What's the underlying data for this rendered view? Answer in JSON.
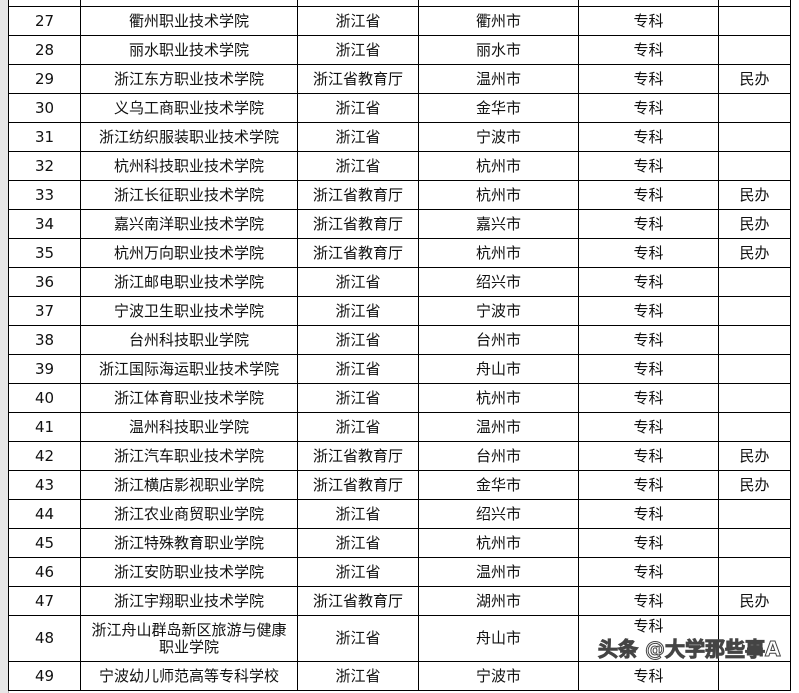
{
  "rows": [
    {
      "no": "",
      "name": "",
      "dept": "",
      "city": "",
      "level": "",
      "note": ""
    },
    {
      "no": "27",
      "name": "衢州职业技术学院",
      "dept": "浙江省",
      "city": "衢州市",
      "level": "专科",
      "note": ""
    },
    {
      "no": "28",
      "name": "丽水职业技术学院",
      "dept": "浙江省",
      "city": "丽水市",
      "level": "专科",
      "note": ""
    },
    {
      "no": "29",
      "name": "浙江东方职业技术学院",
      "dept": "浙江省教育厅",
      "city": "温州市",
      "level": "专科",
      "note": "民办"
    },
    {
      "no": "30",
      "name": "义乌工商职业技术学院",
      "dept": "浙江省",
      "city": "金华市",
      "level": "专科",
      "note": ""
    },
    {
      "no": "31",
      "name": "浙江纺织服装职业技术学院",
      "dept": "浙江省",
      "city": "宁波市",
      "level": "专科",
      "note": ""
    },
    {
      "no": "32",
      "name": "杭州科技职业技术学院",
      "dept": "浙江省",
      "city": "杭州市",
      "level": "专科",
      "note": ""
    },
    {
      "no": "33",
      "name": "浙江长征职业技术学院",
      "dept": "浙江省教育厅",
      "city": "杭州市",
      "level": "专科",
      "note": "民办"
    },
    {
      "no": "34",
      "name": "嘉兴南洋职业技术学院",
      "dept": "浙江省教育厅",
      "city": "嘉兴市",
      "level": "专科",
      "note": "民办"
    },
    {
      "no": "35",
      "name": "杭州万向职业技术学院",
      "dept": "浙江省教育厅",
      "city": "杭州市",
      "level": "专科",
      "note": "民办"
    },
    {
      "no": "36",
      "name": "浙江邮电职业技术学院",
      "dept": "浙江省",
      "city": "绍兴市",
      "level": "专科",
      "note": ""
    },
    {
      "no": "37",
      "name": "宁波卫生职业技术学院",
      "dept": "浙江省",
      "city": "宁波市",
      "level": "专科",
      "note": ""
    },
    {
      "no": "38",
      "name": "台州科技职业学院",
      "dept": "浙江省",
      "city": "台州市",
      "level": "专科",
      "note": ""
    },
    {
      "no": "39",
      "name": "浙江国际海运职业技术学院",
      "dept": "浙江省",
      "city": "舟山市",
      "level": "专科",
      "note": ""
    },
    {
      "no": "40",
      "name": "浙江体育职业技术学院",
      "dept": "浙江省",
      "city": "杭州市",
      "level": "专科",
      "note": ""
    },
    {
      "no": "41",
      "name": "温州科技职业学院",
      "dept": "浙江省",
      "city": "温州市",
      "level": "专科",
      "note": ""
    },
    {
      "no": "42",
      "name": "浙江汽车职业技术学院",
      "dept": "浙江省教育厅",
      "city": "台州市",
      "level": "专科",
      "note": "民办"
    },
    {
      "no": "43",
      "name": "浙江横店影视职业学院",
      "dept": "浙江省教育厅",
      "city": "金华市",
      "level": "专科",
      "note": "民办"
    },
    {
      "no": "44",
      "name": "浙江农业商贸职业学院",
      "dept": "浙江省",
      "city": "绍兴市",
      "level": "专科",
      "note": ""
    },
    {
      "no": "45",
      "name": "浙江特殊教育职业学院",
      "dept": "浙江省",
      "city": "杭州市",
      "level": "专科",
      "note": ""
    },
    {
      "no": "46",
      "name": "浙江安防职业技术学院",
      "dept": "浙江省",
      "city": "温州市",
      "level": "专科",
      "note": ""
    },
    {
      "no": "47",
      "name": "浙江宇翔职业技术学院",
      "dept": "浙江省教育厅",
      "city": "湖州市",
      "level": "专科",
      "note": "民办"
    },
    {
      "no": "48",
      "name": "浙江舟山群岛新区旅游与健康职业学院",
      "dept": "浙江省",
      "city": "舟山市",
      "level": "专科",
      "note": ""
    },
    {
      "no": "49",
      "name": "宁波幼儿师范高等专科学校",
      "dept": "浙江省",
      "city": "宁波市",
      "level": "专科",
      "note": ""
    }
  ],
  "watermark": "头条 @大学那些事A"
}
